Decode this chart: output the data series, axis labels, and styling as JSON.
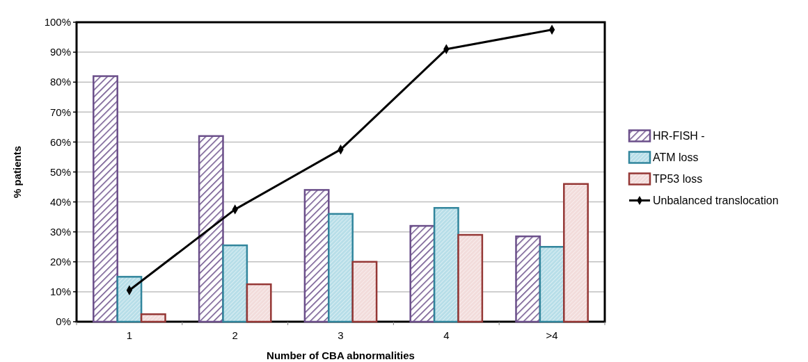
{
  "chart_data": {
    "type": "bar",
    "xlabel": "Number of CBA abnormalities",
    "ylabel": "% patients",
    "categories": [
      "1",
      "2",
      "3",
      "4",
      ">4"
    ],
    "series": [
      {
        "name": "HR-FISH -",
        "color": "#6b4f8a",
        "values": [
          82,
          62,
          44,
          32,
          28.5
        ]
      },
      {
        "name": "ATM loss",
        "color": "#31859c",
        "values": [
          15,
          25.5,
          36,
          38,
          25
        ]
      },
      {
        "name": "TP53 loss",
        "color": "#953735",
        "values": [
          2.5,
          12.5,
          20,
          29,
          46
        ]
      },
      {
        "name": "Unbalanced translocation",
        "type": "line",
        "color": "#000000",
        "marker": "diamond",
        "values": [
          10.5,
          37.5,
          57.5,
          91,
          97.5
        ]
      }
    ],
    "ylim": [
      0,
      100
    ],
    "yticks": [
      {
        "value": 0,
        "label": "0%"
      },
      {
        "value": 10,
        "label": "10%"
      },
      {
        "value": 20,
        "label": "20%"
      },
      {
        "value": 30,
        "label": "30%"
      },
      {
        "value": 40,
        "label": "40%"
      },
      {
        "value": 50,
        "label": "50%"
      },
      {
        "value": 60,
        "label": "60%"
      },
      {
        "value": 70,
        "label": "70%"
      },
      {
        "value": 80,
        "label": "80%"
      },
      {
        "value": 90,
        "label": "90%"
      },
      {
        "value": 100,
        "label": "100%"
      }
    ],
    "grid": "y",
    "legend": "right"
  }
}
